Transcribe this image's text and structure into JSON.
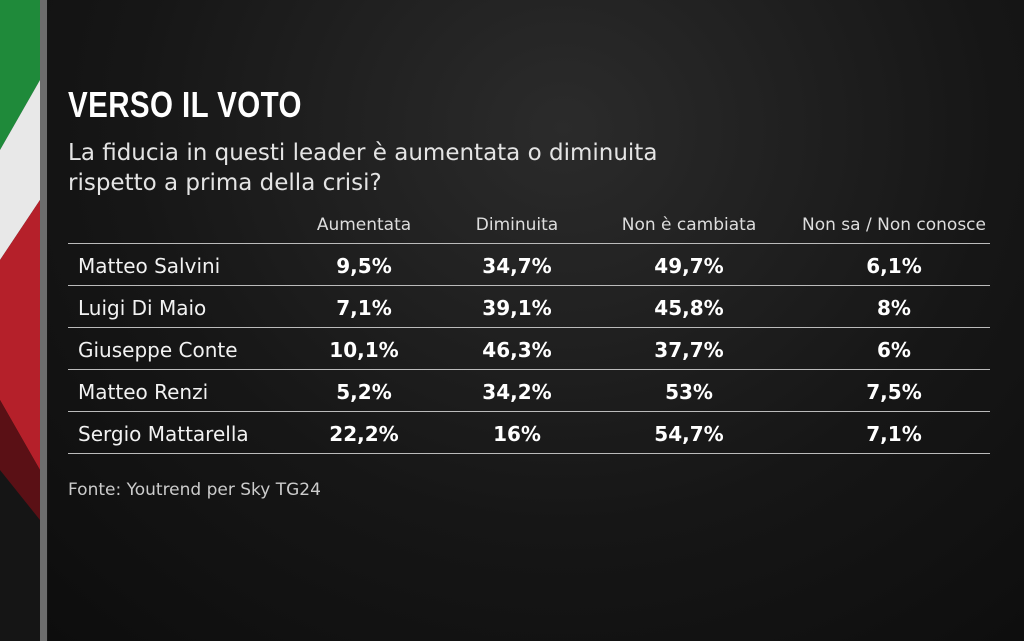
{
  "header": {
    "title": "VERSO IL VOTO",
    "subtitle_lines": [
      "La fiducia in questi leader è aumentata o diminuita",
      "rispetto a prima della crisi?"
    ]
  },
  "table": {
    "columns": [
      "Aumentata",
      "Diminuita",
      "Non è cambiata",
      "Non sa / Non conosce"
    ],
    "rows": [
      [
        "Matteo Salvini",
        "9,5%",
        "34,7%",
        "49,7%",
        "6,1%"
      ],
      [
        "Luigi Di Maio",
        "7,1%",
        "39,1%",
        "45,8%",
        "8%"
      ],
      [
        "Giuseppe Conte",
        "10,1%",
        "46,3%",
        "37,7%",
        "6%"
      ],
      [
        "Matteo Renzi",
        "5,2%",
        "34,2%",
        "53%",
        "7,5%"
      ],
      [
        "Sergio Mattarella",
        "22,2%",
        "16%",
        "54,7%",
        "7,1%"
      ]
    ]
  },
  "source": "Fonte: Youtrend per Sky TG24"
}
